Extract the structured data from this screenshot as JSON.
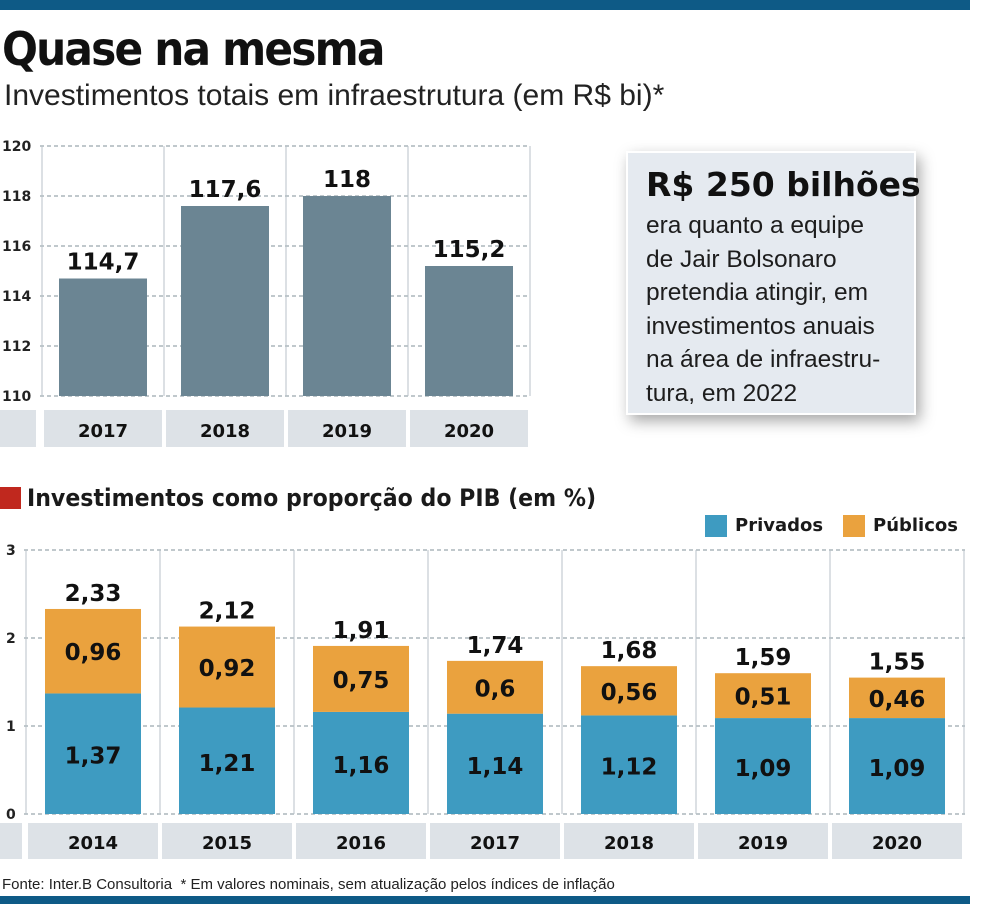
{
  "header": {
    "title": "Quase na mesma",
    "subtitle": "Investimentos totais em infraestrutura (em R$ bi)*"
  },
  "callout": {
    "headline": "R$ 250 bilhões",
    "lines": [
      "era quanto a equipe",
      "de Jair Bolsonaro",
      "pretendia atingir, em",
      "investimentos anuais",
      "na área de infraestru-",
      "tura, em 2022"
    ]
  },
  "section2": {
    "title": "Investimentos como proporção do PIB (em %)"
  },
  "legend": {
    "private": "Privados",
    "public": "Públicos"
  },
  "colors": {
    "accent": "#0e5a86",
    "bar_total": "#6b8593",
    "private": "#3e9bc1",
    "public": "#eaa23e",
    "category_band": "#dde2e7",
    "marker": "#c0281e"
  },
  "footer": {
    "source": "Fonte: Inter.B Consultoria",
    "note": "* Em valores nominais, sem atualização pelos índices de inflação"
  },
  "chart_data": [
    {
      "type": "bar",
      "title": "Investimentos totais em infraestrutura (em R$ bi)*",
      "categories": [
        "2017",
        "2018",
        "2019",
        "2020"
      ],
      "values": [
        114.7,
        117.6,
        118,
        115.2
      ],
      "value_labels": [
        "114,7",
        "117,6",
        "118",
        "115,2"
      ],
      "yticks": [
        "110",
        "112",
        "114",
        "116",
        "118",
        "120"
      ],
      "ylim": [
        110,
        120
      ]
    },
    {
      "type": "bar",
      "stacked": true,
      "title": "Investimentos como proporção do PIB (em %)",
      "categories": [
        "2014",
        "2015",
        "2016",
        "2017",
        "2018",
        "2019",
        "2020"
      ],
      "series": [
        {
          "name": "Privados",
          "values": [
            1.37,
            1.21,
            1.16,
            1.14,
            1.12,
            1.09,
            1.09
          ],
          "labels": [
            "1,37",
            "1,21",
            "1,16",
            "1,14",
            "1,12",
            "1,09",
            "1,09"
          ]
        },
        {
          "name": "Públicos",
          "values": [
            0.96,
            0.92,
            0.75,
            0.6,
            0.56,
            0.51,
            0.46
          ],
          "labels": [
            "0,96",
            "0,92",
            "0,75",
            "0,6",
            "0,56",
            "0,51",
            "0,46"
          ]
        }
      ],
      "totals": [
        2.33,
        2.12,
        1.91,
        1.74,
        1.68,
        1.59,
        1.55
      ],
      "total_labels": [
        "2,33",
        "2,12",
        "1,91",
        "1,74",
        "1,68",
        "1,59",
        "1,55"
      ],
      "yticks": [
        "0",
        "1",
        "2",
        "3"
      ],
      "ylim": [
        0,
        3
      ],
      "legend": "top-right"
    }
  ]
}
